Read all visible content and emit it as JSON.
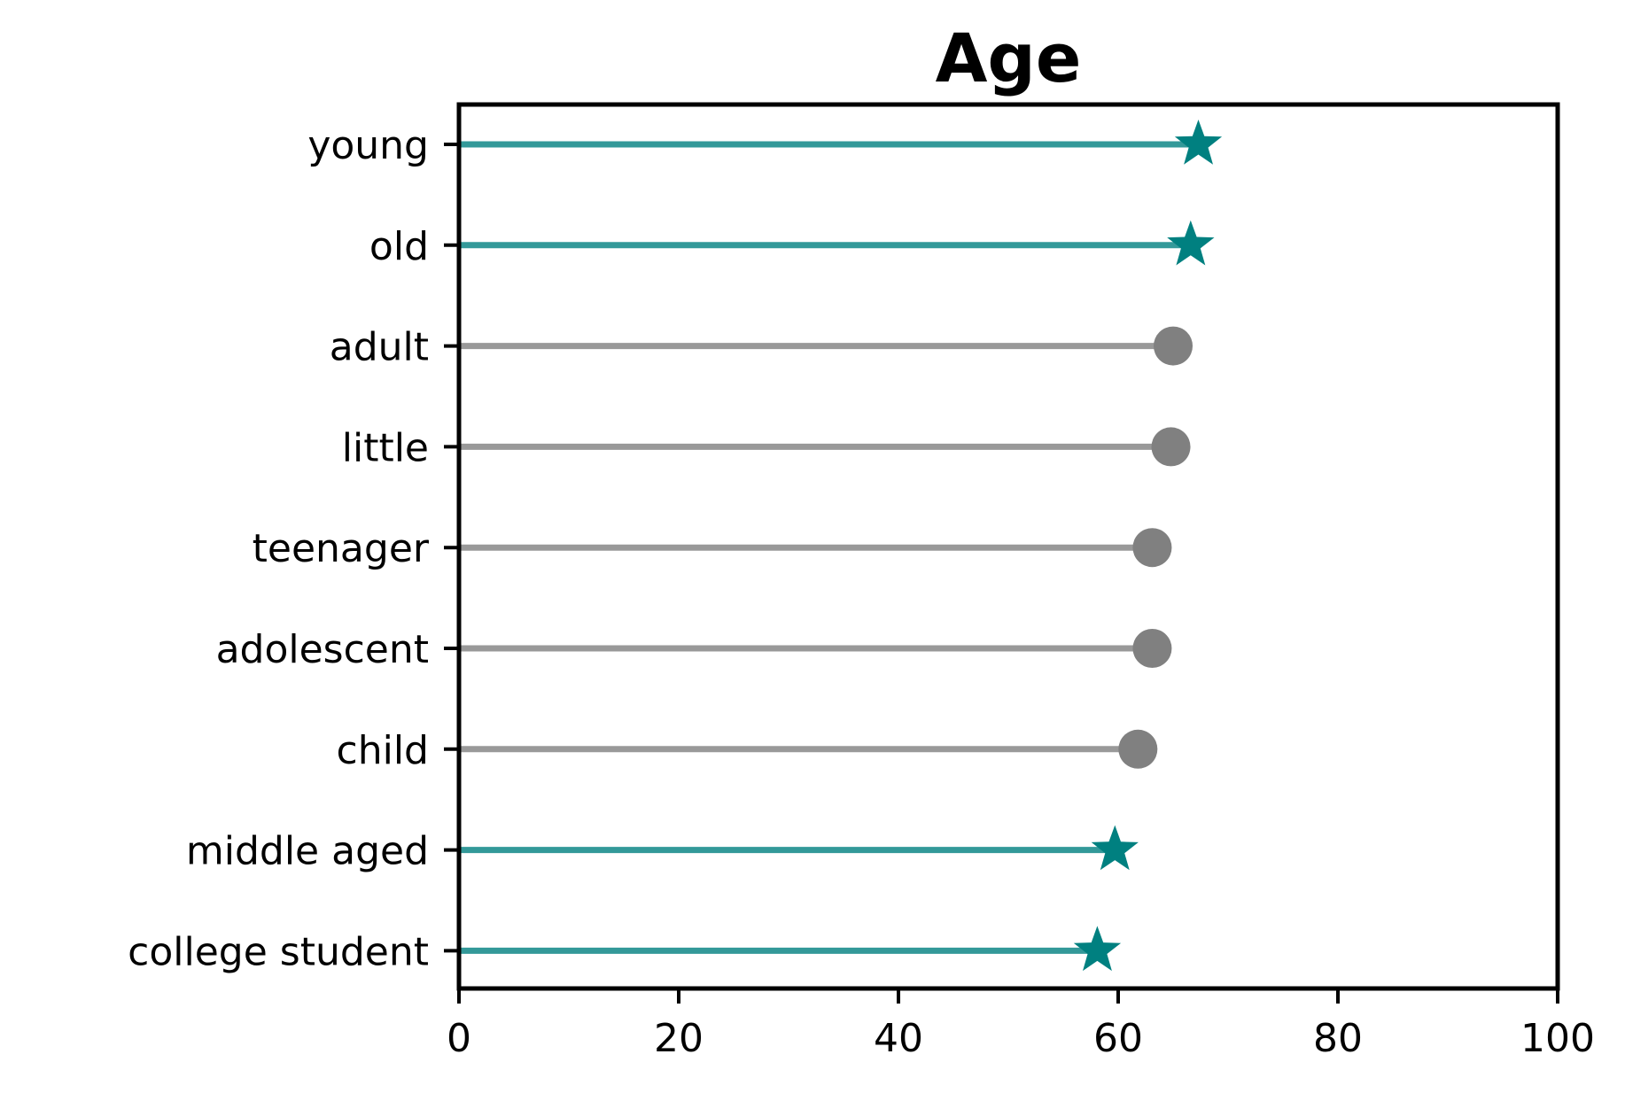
{
  "chart_data": {
    "type": "lollipop",
    "title": "Age",
    "xlabel": "",
    "ylabel": "",
    "xlim": [
      0,
      100
    ],
    "xticks": [
      "0",
      "20",
      "40",
      "60",
      "80",
      "100"
    ],
    "grid": false,
    "categories": [
      "young",
      "old",
      "adult",
      "little",
      "teenager",
      "adolescent",
      "child",
      "middle aged",
      "college student"
    ],
    "values": [
      67.3,
      66.6,
      65.0,
      64.8,
      63.1,
      63.1,
      61.8,
      59.7,
      58.1
    ],
    "highlighted": [
      true,
      true,
      false,
      false,
      false,
      false,
      false,
      true,
      true
    ],
    "colors": {
      "highlight_line": "#339999",
      "highlight_marker": "#008080",
      "normal_line": "#999999",
      "normal_marker": "#808080",
      "axes": "#000000"
    }
  }
}
